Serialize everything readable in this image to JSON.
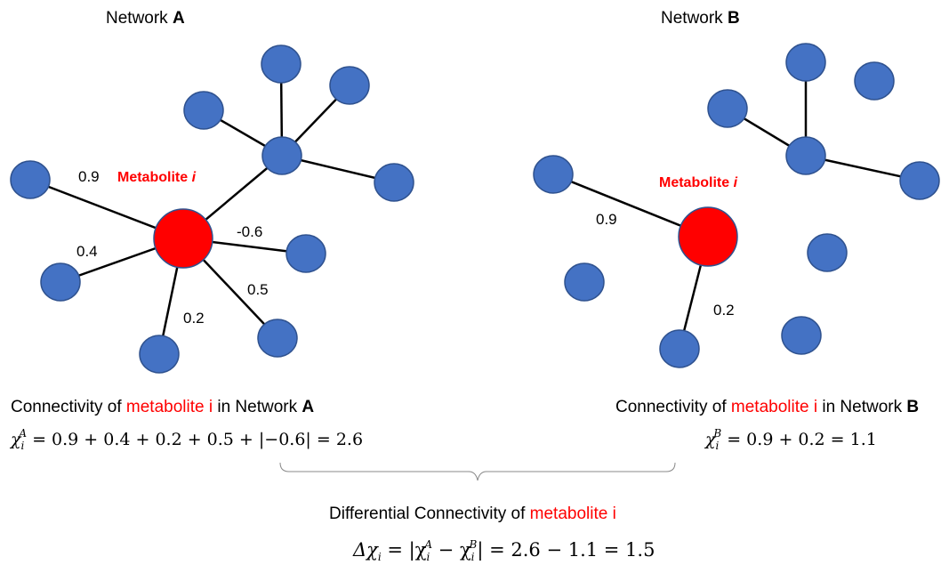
{
  "network_a": {
    "title_prefix": "Network ",
    "title_letter": "A",
    "metabolite_label_prefix": "Metabolite ",
    "metabolite_label_i": "i",
    "edge_labels": [
      "0.9",
      "0.4",
      "-0.6",
      "0.5",
      "0.2"
    ],
    "caption_prefix": "Connectivity of ",
    "caption_red": "metabolite i",
    "caption_mid": " in Network ",
    "caption_letter": "A",
    "formula": {
      "chi": "χ",
      "sub": "i",
      "sup": "A",
      "rhs": " = 0.9 + 0.4 + 0.2 + 0.5 + |−0.6| = 2.6"
    }
  },
  "network_b": {
    "title_prefix": "Network ",
    "title_letter": "B",
    "metabolite_label_prefix": "Metabolite ",
    "metabolite_label_i": "i",
    "edge_labels": [
      "0.9",
      "0.2"
    ],
    "caption_prefix": "Connectivity of ",
    "caption_red": "metabolite i",
    "caption_mid": " in Network ",
    "caption_letter": "B",
    "formula": {
      "chi": "χ",
      "sub": "i",
      "sup": "B",
      "rhs": " = 0.9 + 0.2 = 1.1"
    }
  },
  "differential": {
    "caption_prefix": "Differential Connectivity of ",
    "caption_red": "metabolite i",
    "formula": {
      "lhs": "Δχ",
      "lhs_sub": "i",
      "eq_open": " = |χ",
      "a_sub": "i",
      "a_sup": "A",
      "minus": " − χ",
      "b_sub": "i",
      "b_sup": "B",
      "rhs": "| = 2.6 − 1.1 = 1.5"
    }
  },
  "colors": {
    "node_blue": "#4472c4",
    "node_outline": "#2f528f",
    "metabolite_red": "#ff0000",
    "edge": "#000000",
    "brace": "#888888"
  }
}
